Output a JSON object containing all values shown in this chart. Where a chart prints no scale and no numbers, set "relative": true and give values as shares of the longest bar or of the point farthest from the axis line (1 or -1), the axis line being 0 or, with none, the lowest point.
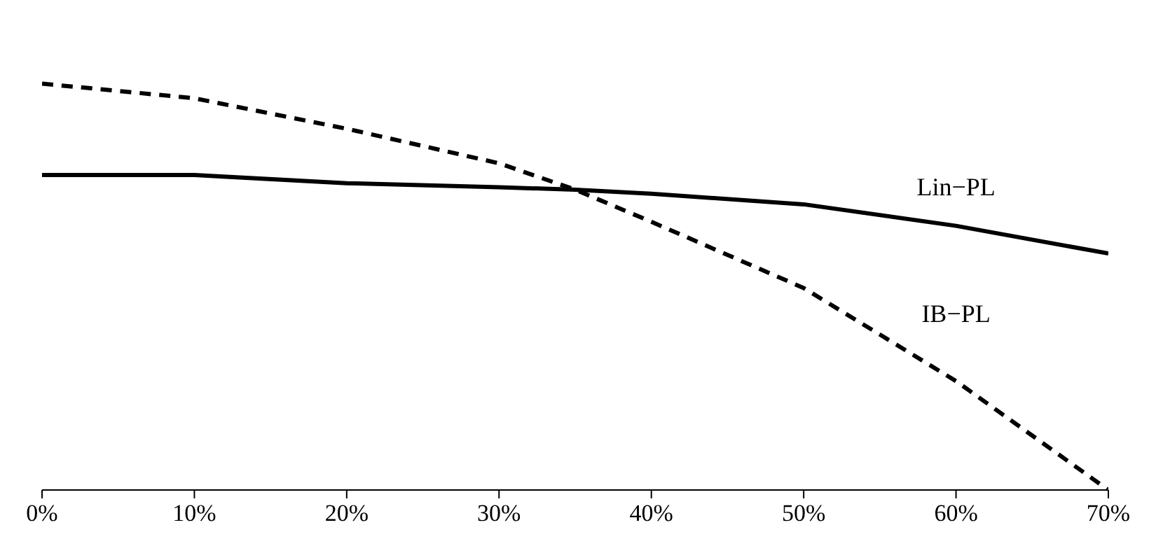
{
  "chart_data": {
    "type": "line",
    "relative": true,
    "x": [
      0,
      10,
      20,
      30,
      35,
      40,
      50,
      60,
      70
    ],
    "xlim": [
      0,
      70
    ],
    "xticks": [
      {
        "value": 0,
        "label": "0%"
      },
      {
        "value": 10,
        "label": "10%"
      },
      {
        "value": 20,
        "label": "20%"
      },
      {
        "value": 30,
        "label": "30%"
      },
      {
        "value": 40,
        "label": "40%"
      },
      {
        "value": 50,
        "label": "50%"
      },
      {
        "value": 60,
        "label": "60%"
      },
      {
        "value": 70,
        "label": "70%"
      }
    ],
    "marker": "none",
    "legend": false,
    "series": [
      {
        "name": "Lin−PL",
        "color": "#000000",
        "line_style": "solid",
        "values": [
          0.775,
          0.775,
          0.755,
          0.745,
          0.739,
          0.729,
          0.703,
          0.65,
          0.582
        ]
      },
      {
        "name": "IB−PL",
        "color": "#000000",
        "line_style": "dashed",
        "values": [
          1,
          0.964,
          0.889,
          0.804,
          0.739,
          0.66,
          0.497,
          0.268,
          0
        ]
      }
    ]
  }
}
